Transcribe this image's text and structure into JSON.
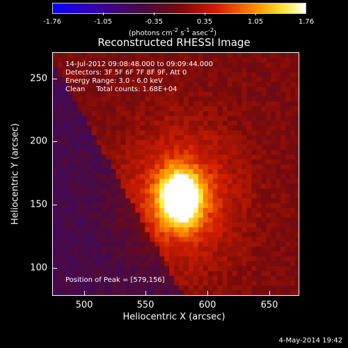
{
  "colorbar": {
    "ticks": [
      "-1.76",
      "-1.05",
      "-0.35",
      "0.35",
      "1.05",
      "1.76"
    ],
    "units_html": "(photons cm<sup>-2</sup> s<sup>-1</sup> asec<sup>-2</sup>)",
    "units_text": "(photons cm-2 s-1 asec-2)"
  },
  "plot": {
    "title": "Reconstructed RHESSI Image",
    "info": {
      "time_range": "14-Jul-2012 09:08:48.000 to 09:09:44.000",
      "detectors": "Detectors: 3F 5F 6F 7F 8F 9F, Att 0",
      "energy_range": "Energy Range: 3.0 - 6.0 keV",
      "method_counts": "Clean     Total counts: 1.68E+04"
    },
    "peak_label": "Position of Peak = [579,156]",
    "x_axis": {
      "label": "Heliocentric X (arcsec)",
      "ticks": [
        "500",
        "550",
        "600",
        "650"
      ],
      "range": [
        475,
        675
      ]
    },
    "y_axis": {
      "label": "Heliocentric Y (arcsec)",
      "ticks": [
        "100",
        "150",
        "200",
        "250"
      ],
      "range": [
        80,
        270
      ]
    },
    "peak_position": [
      579,
      156
    ],
    "colormap": "heat (blue-purple-red-yellow-white)"
  },
  "footer": {
    "timestamp": "4-May-2014 19:42"
  }
}
